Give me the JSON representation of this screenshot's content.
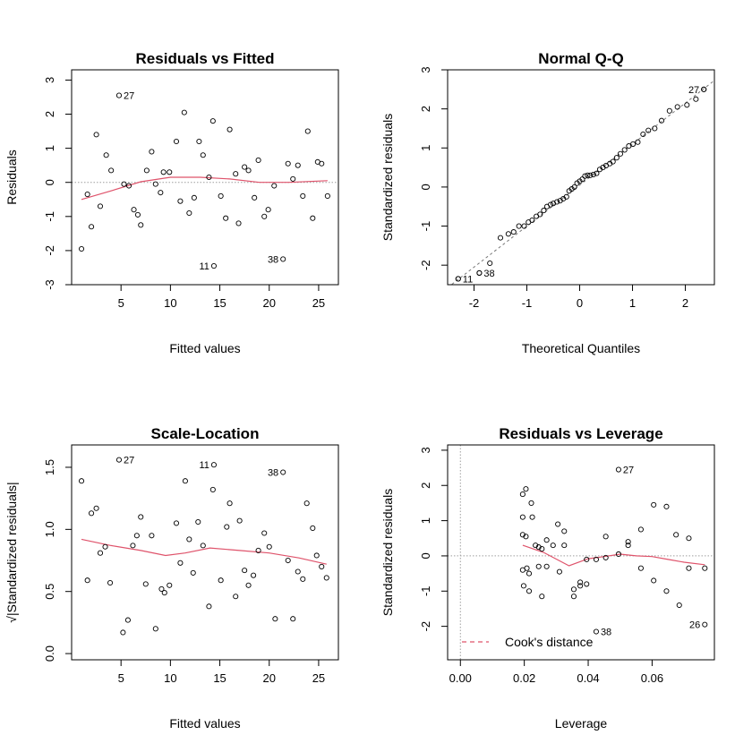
{
  "chart_data": [
    {
      "type": "scatter",
      "title": "Residuals vs Fitted",
      "xlabel": "Fitted values",
      "ylabel": "Residuals",
      "xlim": [
        0.0,
        27.0
      ],
      "ylim": [
        -3.0,
        3.3
      ],
      "xticks": [
        5,
        10,
        15,
        20,
        25
      ],
      "yticks": [
        -3,
        -2,
        -1,
        0,
        1,
        2,
        3
      ],
      "ref_line_y": 0,
      "points": [
        [
          1.0,
          -1.95
        ],
        [
          1.6,
          -0.35
        ],
        [
          2.0,
          -1.3
        ],
        [
          2.5,
          1.4
        ],
        [
          2.9,
          -0.7
        ],
        [
          3.5,
          0.8
        ],
        [
          4.0,
          0.35
        ],
        [
          5.3,
          -0.05
        ],
        [
          5.8,
          -0.1
        ],
        [
          6.3,
          -0.8
        ],
        [
          6.7,
          -0.95
        ],
        [
          7.0,
          -1.25
        ],
        [
          7.6,
          0.35
        ],
        [
          8.1,
          0.9
        ],
        [
          8.5,
          -0.05
        ],
        [
          9.0,
          -0.3
        ],
        [
          9.3,
          0.3
        ],
        [
          9.9,
          0.3
        ],
        [
          10.6,
          1.2
        ],
        [
          11.0,
          -0.55
        ],
        [
          11.4,
          2.05
        ],
        [
          11.9,
          -0.9
        ],
        [
          12.4,
          -0.45
        ],
        [
          12.9,
          1.2
        ],
        [
          13.3,
          0.8
        ],
        [
          13.9,
          0.15
        ],
        [
          14.3,
          1.8
        ],
        [
          15.1,
          -0.4
        ],
        [
          15.6,
          -1.05
        ],
        [
          16.0,
          1.55
        ],
        [
          16.6,
          0.25
        ],
        [
          16.9,
          -1.2
        ],
        [
          17.5,
          0.45
        ],
        [
          17.9,
          0.35
        ],
        [
          18.5,
          -0.45
        ],
        [
          18.9,
          0.65
        ],
        [
          19.5,
          -1.0
        ],
        [
          19.9,
          -0.8
        ],
        [
          20.5,
          -0.1
        ],
        [
          21.9,
          0.55
        ],
        [
          22.4,
          0.1
        ],
        [
          22.9,
          0.5
        ],
        [
          23.4,
          -0.4
        ],
        [
          23.9,
          1.5
        ],
        [
          24.4,
          -1.05
        ],
        [
          24.9,
          0.6
        ],
        [
          25.3,
          0.55
        ],
        [
          25.9,
          -0.4
        ]
      ],
      "labeled_points": [
        {
          "x": 4.8,
          "y": 2.55,
          "label": "27"
        },
        {
          "x": 14.4,
          "y": -2.45,
          "label": "11"
        },
        {
          "x": 21.4,
          "y": -2.25,
          "label": "38"
        }
      ],
      "smooth": [
        [
          1.0,
          -0.5
        ],
        [
          4.0,
          -0.25
        ],
        [
          7.0,
          0.02
        ],
        [
          10.0,
          0.15
        ],
        [
          13.0,
          0.15
        ],
        [
          16.0,
          0.1
        ],
        [
          19.0,
          0.0
        ],
        [
          22.0,
          0.0
        ],
        [
          25.9,
          0.05
        ]
      ]
    },
    {
      "type": "scatter",
      "title": "Normal Q-Q",
      "xlabel": "Theoretical Quantiles",
      "ylabel": "Standardized residuals",
      "xlim": [
        -2.5,
        2.55
      ],
      "ylim": [
        -2.5,
        3.0
      ],
      "xticks": [
        -2,
        -1,
        0,
        1,
        2
      ],
      "yticks": [
        -2,
        -1,
        0,
        1,
        2,
        3
      ],
      "ref_line": {
        "slope": 1.05,
        "intercept": 0.05
      },
      "points": [
        [
          -2.3,
          -2.35
        ],
        [
          -1.9,
          -2.2
        ],
        [
          -1.7,
          -1.95
        ],
        [
          -1.5,
          -1.3
        ],
        [
          -1.35,
          -1.2
        ],
        [
          -1.25,
          -1.15
        ],
        [
          -1.15,
          -1.0
        ],
        [
          -1.05,
          -1.0
        ],
        [
          -0.97,
          -0.9
        ],
        [
          -0.9,
          -0.85
        ],
        [
          -0.82,
          -0.75
        ],
        [
          -0.75,
          -0.7
        ],
        [
          -0.68,
          -0.6
        ],
        [
          -0.62,
          -0.5
        ],
        [
          -0.55,
          -0.45
        ],
        [
          -0.5,
          -0.42
        ],
        [
          -0.43,
          -0.38
        ],
        [
          -0.37,
          -0.35
        ],
        [
          -0.31,
          -0.3
        ],
        [
          -0.25,
          -0.25
        ],
        [
          -0.2,
          -0.1
        ],
        [
          -0.15,
          -0.05
        ],
        [
          -0.1,
          0.0
        ],
        [
          -0.05,
          0.1
        ],
        [
          0.0,
          0.15
        ],
        [
          0.05,
          0.2
        ],
        [
          0.1,
          0.28
        ],
        [
          0.15,
          0.3
        ],
        [
          0.2,
          0.3
        ],
        [
          0.26,
          0.32
        ],
        [
          0.32,
          0.35
        ],
        [
          0.38,
          0.45
        ],
        [
          0.44,
          0.5
        ],
        [
          0.5,
          0.55
        ],
        [
          0.57,
          0.6
        ],
        [
          0.63,
          0.65
        ],
        [
          0.7,
          0.75
        ],
        [
          0.77,
          0.85
        ],
        [
          0.85,
          0.95
        ],
        [
          0.93,
          1.05
        ],
        [
          1.01,
          1.1
        ],
        [
          1.1,
          1.15
        ],
        [
          1.2,
          1.35
        ],
        [
          1.3,
          1.45
        ],
        [
          1.42,
          1.5
        ],
        [
          1.55,
          1.7
        ],
        [
          1.7,
          1.95
        ],
        [
          1.85,
          2.05
        ],
        [
          2.03,
          2.1
        ],
        [
          2.2,
          2.25
        ],
        [
          2.35,
          2.5
        ]
      ],
      "labeled_points": [
        {
          "x": 2.35,
          "y": 2.5,
          "label": "27"
        },
        {
          "x": -2.3,
          "y": -2.35,
          "label": "11"
        },
        {
          "x": -1.9,
          "y": -2.2,
          "label": "38"
        }
      ]
    },
    {
      "type": "scatter",
      "title": "Scale-Location",
      "xlabel": "Fitted values",
      "ylabel": "√|Standardized residuals|",
      "xlim": [
        0.0,
        27.0
      ],
      "ylim": [
        -0.05,
        1.68
      ],
      "xticks": [
        5,
        10,
        15,
        20,
        25
      ],
      "yticks": [
        0.0,
        0.5,
        1.0,
        1.5
      ],
      "yticklabels": [
        "0.0",
        "0.5",
        "1.0",
        "1.5"
      ],
      "points": [
        [
          1.0,
          1.39
        ],
        [
          1.6,
          0.59
        ],
        [
          2.0,
          1.13
        ],
        [
          2.5,
          1.17
        ],
        [
          2.9,
          0.81
        ],
        [
          3.4,
          0.86
        ],
        [
          3.9,
          0.57
        ],
        [
          5.2,
          0.17
        ],
        [
          5.7,
          0.27
        ],
        [
          6.2,
          0.87
        ],
        [
          6.6,
          0.95
        ],
        [
          7.0,
          1.1
        ],
        [
          7.5,
          0.56
        ],
        [
          8.1,
          0.95
        ],
        [
          8.5,
          0.2
        ],
        [
          9.1,
          0.52
        ],
        [
          9.4,
          0.49
        ],
        [
          9.9,
          0.55
        ],
        [
          10.6,
          1.05
        ],
        [
          11.0,
          0.73
        ],
        [
          11.5,
          1.39
        ],
        [
          11.9,
          0.92
        ],
        [
          12.3,
          0.65
        ],
        [
          12.8,
          1.06
        ],
        [
          13.3,
          0.87
        ],
        [
          13.9,
          0.38
        ],
        [
          14.3,
          1.32
        ],
        [
          15.1,
          0.59
        ],
        [
          15.7,
          1.02
        ],
        [
          16.0,
          1.21
        ],
        [
          16.6,
          0.46
        ],
        [
          17.0,
          1.07
        ],
        [
          17.5,
          0.67
        ],
        [
          17.9,
          0.55
        ],
        [
          18.4,
          0.63
        ],
        [
          18.9,
          0.83
        ],
        [
          19.5,
          0.97
        ],
        [
          20.0,
          0.86
        ],
        [
          20.6,
          0.28
        ],
        [
          21.9,
          0.75
        ],
        [
          22.4,
          0.28
        ],
        [
          22.9,
          0.66
        ],
        [
          23.4,
          0.6
        ],
        [
          23.8,
          1.21
        ],
        [
          24.4,
          1.01
        ],
        [
          24.8,
          0.79
        ],
        [
          25.3,
          0.7
        ],
        [
          25.8,
          0.61
        ]
      ],
      "labeled_points": [
        {
          "x": 4.8,
          "y": 1.56,
          "label": "27"
        },
        {
          "x": 14.4,
          "y": 1.52,
          "label": "11"
        },
        {
          "x": 21.4,
          "y": 1.46,
          "label": "38"
        }
      ],
      "smooth": [
        [
          1.0,
          0.92
        ],
        [
          4.0,
          0.87
        ],
        [
          7.0,
          0.83
        ],
        [
          9.5,
          0.79
        ],
        [
          11.5,
          0.81
        ],
        [
          14.0,
          0.85
        ],
        [
          17.0,
          0.83
        ],
        [
          20.0,
          0.81
        ],
        [
          23.0,
          0.77
        ],
        [
          25.8,
          0.72
        ]
      ]
    },
    {
      "type": "scatter",
      "title": "Residuals vs Leverage",
      "xlabel": "Leverage",
      "ylabel": "Standardized residuals",
      "xlim": [
        -0.004,
        0.0795
      ],
      "ylim": [
        -2.95,
        3.15
      ],
      "xticks": [
        0.0,
        0.02,
        0.04,
        0.06
      ],
      "xticklabels": [
        "0.00",
        "0.02",
        "0.04",
        "0.06"
      ],
      "yticks": [
        -2,
        -1,
        0,
        1,
        2,
        3
      ],
      "ref_line_y": 0,
      "ref_line_x": 0,
      "points": [
        [
          0.0195,
          1.75
        ],
        [
          0.0205,
          1.9
        ],
        [
          0.0222,
          1.5
        ],
        [
          0.0195,
          1.1
        ],
        [
          0.0225,
          1.1
        ],
        [
          0.0195,
          0.6
        ],
        [
          0.0205,
          0.55
        ],
        [
          0.0235,
          0.3
        ],
        [
          0.0255,
          0.2
        ],
        [
          0.0245,
          0.25
        ],
        [
          0.027,
          0.45
        ],
        [
          0.029,
          0.3
        ],
        [
          0.0305,
          0.9
        ],
        [
          0.0325,
          0.7
        ],
        [
          0.0325,
          0.3
        ],
        [
          0.0195,
          -0.4
        ],
        [
          0.0208,
          -0.35
        ],
        [
          0.0215,
          -0.5
        ],
        [
          0.0245,
          -0.3
        ],
        [
          0.027,
          -0.3
        ],
        [
          0.031,
          -0.45
        ],
        [
          0.0198,
          -0.85
        ],
        [
          0.0215,
          -1.0
        ],
        [
          0.0255,
          -1.15
        ],
        [
          0.0355,
          -0.95
        ],
        [
          0.0355,
          -1.15
        ],
        [
          0.0375,
          -0.75
        ],
        [
          0.0375,
          -0.85
        ],
        [
          0.0395,
          -0.8
        ],
        [
          0.0395,
          -0.1
        ],
        [
          0.0425,
          -0.1
        ],
        [
          0.0455,
          -0.05
        ],
        [
          0.0455,
          0.55
        ],
        [
          0.0495,
          0.05
        ],
        [
          0.0525,
          0.4
        ],
        [
          0.0525,
          0.3
        ],
        [
          0.0565,
          0.75
        ],
        [
          0.0565,
          -0.35
        ],
        [
          0.0605,
          1.45
        ],
        [
          0.0605,
          -0.7
        ],
        [
          0.0645,
          1.4
        ],
        [
          0.0645,
          -1.0
        ],
        [
          0.0675,
          0.6
        ],
        [
          0.0685,
          -1.4
        ],
        [
          0.0715,
          0.5
        ],
        [
          0.0715,
          -0.35
        ],
        [
          0.0765,
          -0.35
        ]
      ],
      "labeled_points": [
        {
          "x": 0.0495,
          "y": 2.45,
          "label": "27"
        },
        {
          "x": 0.0425,
          "y": -2.15,
          "label": "38"
        },
        {
          "x": 0.0765,
          "y": -1.95,
          "label": "26"
        }
      ],
      "smooth": [
        [
          0.0195,
          0.3
        ],
        [
          0.026,
          0.1
        ],
        [
          0.034,
          -0.28
        ],
        [
          0.04,
          -0.08
        ],
        [
          0.045,
          -0.02
        ],
        [
          0.05,
          0.05
        ],
        [
          0.055,
          0.0
        ],
        [
          0.06,
          -0.02
        ],
        [
          0.065,
          -0.1
        ],
        [
          0.07,
          -0.18
        ],
        [
          0.0765,
          -0.25
        ]
      ],
      "legend": {
        "label": "Cook's distance",
        "placement": "bottom-left"
      }
    }
  ]
}
